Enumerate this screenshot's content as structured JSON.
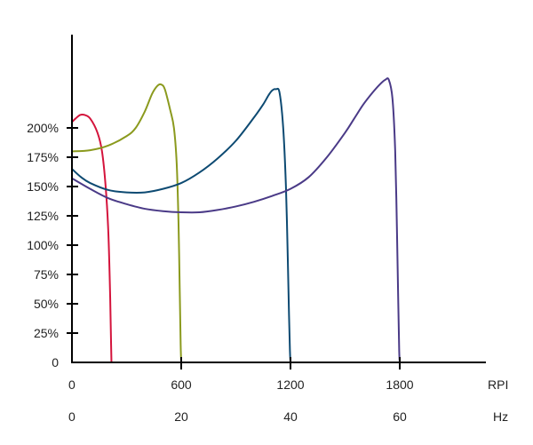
{
  "chart_data": {
    "type": "line",
    "y_tick_labels": [
      "0",
      "25%",
      "50%",
      "75%",
      "100%",
      "125%",
      "150%",
      "175%",
      "200%"
    ],
    "y_tick_values": [
      0,
      25,
      50,
      75,
      100,
      125,
      150,
      175,
      200
    ],
    "ylim": [
      0,
      240
    ],
    "xlim": [
      0,
      2200
    ],
    "x_axis_rpm": {
      "unit_label": "RPI",
      "ticks": [
        {
          "label": "0",
          "value": 0
        },
        {
          "label": "600",
          "value": 600
        },
        {
          "label": "1200",
          "value": 1200
        },
        {
          "label": "1800",
          "value": 1800
        }
      ]
    },
    "x_axis_hz": {
      "unit_label": "Hz",
      "ticks": [
        {
          "label": "0",
          "value": 0
        },
        {
          "label": "20",
          "value": 600
        },
        {
          "label": "40",
          "value": 1200
        },
        {
          "label": "60",
          "value": 1800
        }
      ]
    },
    "grid": false,
    "series": [
      {
        "color": "#d4143c",
        "x": [
          0,
          20,
          45,
          70,
          100,
          140,
          165,
          185,
          200,
          210,
          215,
          217
        ],
        "y": [
          205,
          208,
          211,
          211,
          208,
          196,
          180,
          150,
          110,
          55,
          15,
          0
        ]
      },
      {
        "color": "#8b9a1e",
        "x": [
          0,
          100,
          200,
          300,
          350,
          400,
          440,
          470,
          490,
          510,
          540,
          560,
          575,
          585,
          592,
          597,
          600
        ],
        "y": [
          180,
          181,
          185,
          193,
          200,
          214,
          229,
          236,
          237,
          233,
          215,
          200,
          170,
          120,
          60,
          15,
          0
        ]
      },
      {
        "color": "#0d4a72",
        "x": [
          0,
          50,
          100,
          200,
          300,
          400,
          500,
          600,
          700,
          800,
          900,
          1000,
          1050,
          1080,
          1100,
          1120,
          1140,
          1160,
          1175,
          1185,
          1192,
          1197,
          1200
        ],
        "y": [
          165,
          158,
          153,
          147,
          145,
          145,
          148,
          153,
          162,
          174,
          189,
          209,
          220,
          228,
          232,
          233,
          230,
          200,
          150,
          90,
          40,
          10,
          0
        ]
      },
      {
        "color": "#4a3a87",
        "x": [
          0,
          100,
          200,
          300,
          400,
          500,
          600,
          700,
          800,
          900,
          1000,
          1100,
          1200,
          1300,
          1400,
          1500,
          1550,
          1600,
          1650,
          1690,
          1720,
          1740,
          1760,
          1775,
          1785,
          1792,
          1797,
          1800
        ],
        "y": [
          157,
          148,
          140,
          135,
          131,
          129,
          128,
          128,
          130,
          133,
          137,
          142,
          148,
          158,
          175,
          196,
          208,
          220,
          230,
          237,
          241,
          241,
          225,
          180,
          110,
          50,
          10,
          0
        ]
      }
    ]
  }
}
